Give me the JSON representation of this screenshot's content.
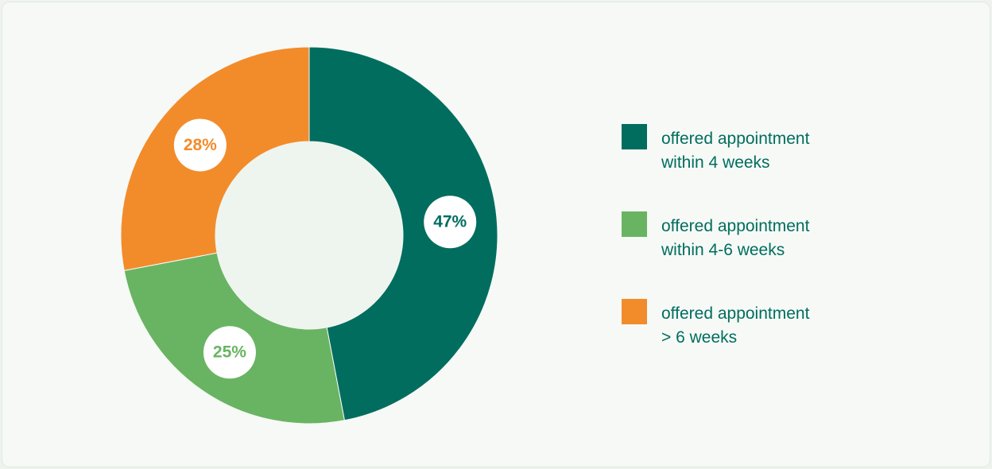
{
  "chart_data": {
    "type": "pie",
    "donut": true,
    "background": "#f6f9f6",
    "hole_color": "#eef5ee",
    "categories": [
      "offered appointment within 4 weeks",
      "offered appointment within 4-6 weeks",
      "offered appointment > 6 weeks"
    ],
    "values": [
      47,
      25,
      28
    ],
    "data_labels": [
      "47%",
      "25%",
      "28%"
    ],
    "colors": [
      "#006d5f",
      "#69b462",
      "#f28c2b"
    ],
    "legend_position": "right",
    "legend": [
      {
        "line1": "offered appointment",
        "line2": "within 4 weeks",
        "color": "#006d5f"
      },
      {
        "line1": "offered appointment",
        "line2": "within 4-6 weeks",
        "color": "#69b462"
      },
      {
        "line1": "offered appointment",
        "line2": "> 6 weeks",
        "color": "#f28c2b"
      }
    ],
    "title": "",
    "xlabel": "",
    "ylabel": ""
  }
}
